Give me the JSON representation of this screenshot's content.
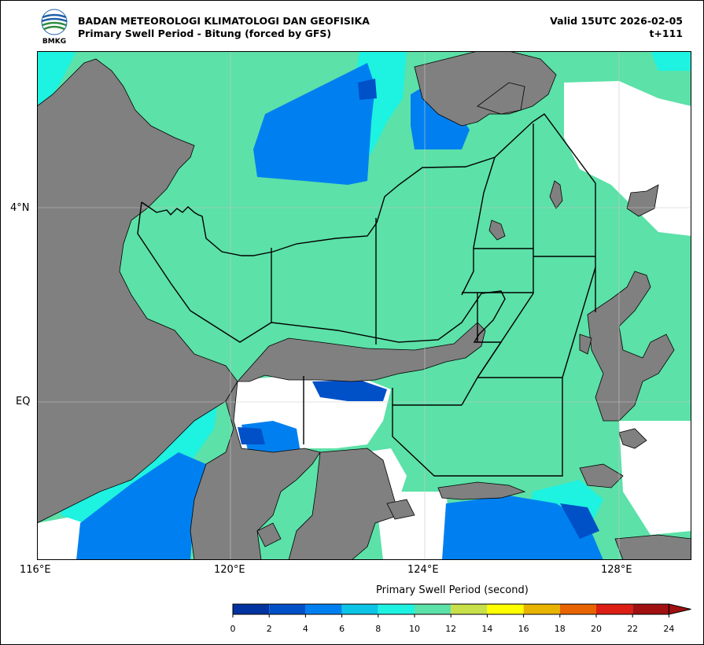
{
  "header": {
    "logo_text": "BMKG",
    "agency": "BADAN METEOROLOGI KLIMATOLOGI DAN GEOFISIKA",
    "product": "Primary Swell Period - Bitung (forced by GFS)",
    "valid": "Valid 15UTC 2026-02-05",
    "lead": "t+111"
  },
  "map": {
    "lat_ticks": [
      "4°N",
      "EQ"
    ],
    "lon_ticks": [
      "116°E",
      "120°E",
      "124°E",
      "128°E"
    ],
    "colors": {
      "land": "#808080",
      "no_data": "#ffffff",
      "period_10_12": "#5ce1a8",
      "period_8_10": "#1ef2e0",
      "period_6_8": "#0cc5e6",
      "period_4_6": "#0080f0",
      "period_2_4": "#0050c8"
    }
  },
  "colorbar": {
    "title": "Primary Swell Period (second)",
    "labels": [
      "0",
      "2",
      "4",
      "6",
      "8",
      "10",
      "12",
      "14",
      "16",
      "18",
      "20",
      "22",
      "24"
    ],
    "colors": [
      "#0033a0",
      "#0050c8",
      "#0080f0",
      "#0cc5e6",
      "#1ef2e0",
      "#5ce1a8",
      "#c8e04a",
      "#ffff00",
      "#e8b400",
      "#e86400",
      "#dc1e14",
      "#a01010"
    ]
  }
}
